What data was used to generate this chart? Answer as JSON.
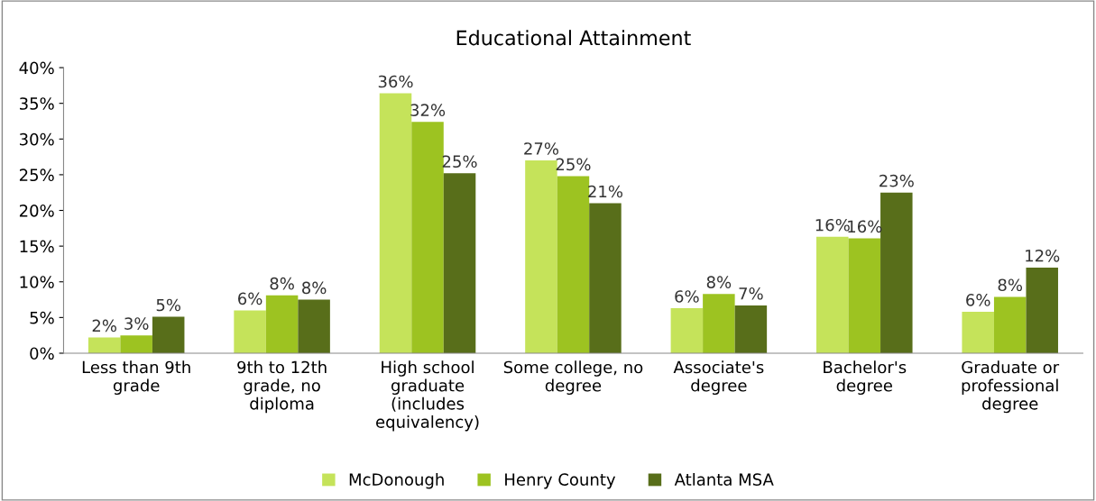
{
  "chart_data": {
    "type": "bar",
    "title": "Educational Attainment",
    "categories": [
      "Less than 9th grade",
      "9th to 12th grade, no diploma",
      "High school graduate (includes equivalency)",
      "Some college, no degree",
      "Associate's degree",
      "Bachelor's degree",
      "Graduate or professional degree"
    ],
    "series": [
      {
        "name": "McDonough",
        "color": "#c5e35a",
        "values": [
          2.2,
          6.0,
          36.4,
          27.0,
          6.3,
          16.3,
          5.8
        ],
        "value_labels": [
          "2%",
          "6%",
          "36%",
          "27%",
          "6%",
          "16%",
          "6%"
        ]
      },
      {
        "name": "Henry County",
        "color": "#9dc321",
        "values": [
          2.5,
          8.1,
          32.4,
          24.8,
          8.3,
          16.1,
          7.9
        ],
        "value_labels": [
          "3%",
          "8%",
          "32%",
          "25%",
          "8%",
          "16%",
          "8%"
        ]
      },
      {
        "name": "Atlanta MSA",
        "color": "#586e1a",
        "values": [
          5.1,
          7.5,
          25.2,
          21.0,
          6.7,
          22.5,
          12.0
        ],
        "value_labels": [
          "5%",
          "8%",
          "25%",
          "21%",
          "7%",
          "23%",
          "12%"
        ]
      }
    ],
    "ylim": [
      0,
      40
    ],
    "yticks": [
      {
        "value": 0,
        "label": "0%"
      },
      {
        "value": 5,
        "label": "5%"
      },
      {
        "value": 10,
        "label": "10%"
      },
      {
        "value": 15,
        "label": "15%"
      },
      {
        "value": 20,
        "label": "20%"
      },
      {
        "value": 25,
        "label": "25%"
      },
      {
        "value": 30,
        "label": "30%"
      },
      {
        "value": 35,
        "label": "35%"
      },
      {
        "value": 40,
        "label": "40%"
      }
    ],
    "grid": false,
    "legend": "bottom"
  }
}
